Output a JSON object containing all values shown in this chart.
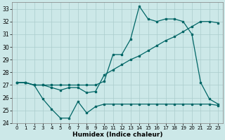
{
  "xlabel": "Humidex (Indice chaleur)",
  "bg_color": "#cce8e8",
  "grid_color": "#aacccc",
  "line_color": "#006666",
  "xlim": [
    -0.5,
    23.5
  ],
  "ylim": [
    24,
    33.5
  ],
  "yticks": [
    24,
    25,
    26,
    27,
    28,
    29,
    30,
    31,
    32,
    33
  ],
  "xticks": [
    0,
    1,
    2,
    3,
    4,
    5,
    6,
    7,
    8,
    9,
    10,
    11,
    12,
    13,
    14,
    15,
    16,
    17,
    18,
    19,
    20,
    21,
    22,
    23
  ],
  "line1_x": [
    0,
    1,
    2,
    3,
    4,
    5,
    6,
    7,
    8,
    9,
    10,
    11,
    12,
    13,
    14,
    15,
    16,
    17,
    18,
    19,
    20,
    21,
    22,
    23
  ],
  "line1_y": [
    27.2,
    27.2,
    27.0,
    25.9,
    25.1,
    24.4,
    24.4,
    25.7,
    24.8,
    25.3,
    25.5,
    25.5,
    25.5,
    25.5,
    25.5,
    25.5,
    25.5,
    25.5,
    25.5,
    25.5,
    25.5,
    25.5,
    25.5,
    25.4
  ],
  "line2_x": [
    0,
    1,
    2,
    3,
    4,
    5,
    6,
    7,
    8,
    9,
    10,
    11,
    12,
    13,
    14,
    15,
    16,
    17,
    18,
    19,
    20,
    21,
    22,
    23
  ],
  "line2_y": [
    27.2,
    27.2,
    27.0,
    27.0,
    26.8,
    26.6,
    26.8,
    26.8,
    26.4,
    26.5,
    27.8,
    28.2,
    28.6,
    29.0,
    29.3,
    29.7,
    30.1,
    30.5,
    30.8,
    31.2,
    31.6,
    32.0,
    32.0,
    31.9
  ],
  "line3_x": [
    0,
    1,
    2,
    3,
    4,
    5,
    6,
    7,
    8,
    9,
    10,
    11,
    12,
    13,
    14,
    15,
    16,
    17,
    18,
    19,
    20,
    21,
    22,
    23
  ],
  "line3_y": [
    27.2,
    27.2,
    27.0,
    27.0,
    27.0,
    27.0,
    27.0,
    27.0,
    27.0,
    27.0,
    27.3,
    29.4,
    29.4,
    30.6,
    33.2,
    32.2,
    32.0,
    32.2,
    32.2,
    32.0,
    31.0,
    27.2,
    25.9,
    25.5
  ]
}
